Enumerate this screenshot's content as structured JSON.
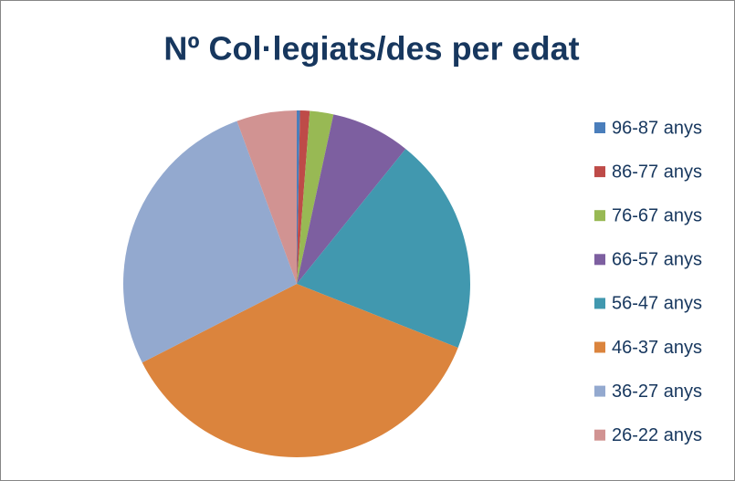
{
  "chart_data": {
    "type": "pie",
    "title": "Nº Col·legiats/des per edat",
    "categories": [
      "96-87 anys",
      "86-77 anys",
      "76-67 anys",
      "66-57 anys",
      "56-47 anys",
      "46-37 anys",
      "36-27 anys",
      "26-22 anys"
    ],
    "values": [
      0.3,
      0.9,
      2.2,
      7.4,
      20.2,
      36.5,
      26.9,
      5.6
    ],
    "colors": [
      "#4a7ebb",
      "#be4b48",
      "#98b954",
      "#7d5fa0",
      "#4198af",
      "#db843d",
      "#93a9cf",
      "#d19392"
    ],
    "legend": "right"
  }
}
